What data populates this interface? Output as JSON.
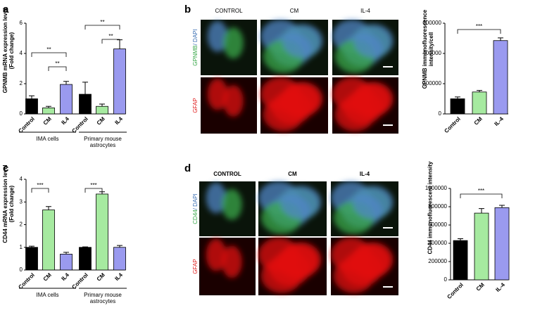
{
  "chart_data": [
    {
      "type": "bar",
      "y_label": "GPNMB mRNA expression level (Fold change)",
      "categories": [
        "Control",
        "CM",
        "IL4",
        "Control",
        "CM",
        "IL4"
      ],
      "values": [
        1.0,
        0.4,
        1.95,
        1.3,
        0.5,
        4.3
      ],
      "errors": [
        0.2,
        0.1,
        0.2,
        0.8,
        0.15,
        0.6
      ],
      "colors": [
        "#000000",
        "#a6eaa0",
        "#9a9aef",
        "#000000",
        "#a6eaa0",
        "#9a9aef"
      ],
      "groups": [
        "IMA cells",
        "Primary mouse astrocytes"
      ],
      "annotations": [
        "**",
        "**",
        "**",
        "**"
      ],
      "ylim": [
        0,
        6
      ],
      "yticks": [
        0,
        2,
        4,
        6
      ]
    },
    {
      "type": "bar",
      "y_label": "GPNMB immunofluorescence intensity/cell",
      "categories": [
        "Control",
        "CM",
        "IL-4"
      ],
      "values": [
        100000,
        145000,
        485000
      ],
      "errors": [
        12000,
        10000,
        18000
      ],
      "colors": [
        "#000000",
        "#a6eaa0",
        "#9a9aef"
      ],
      "annotations": [
        "***"
      ],
      "ylim": [
        0,
        600000
      ],
      "yticks": [
        0,
        200000,
        400000,
        600000
      ]
    },
    {
      "type": "bar",
      "y_label": "CD44 mRNA expression level (Fold change)",
      "categories": [
        "Control",
        "CM",
        "IL4",
        "Control",
        "CM",
        "IL4"
      ],
      "values": [
        1.0,
        2.65,
        0.7,
        1.0,
        3.35,
        1.0
      ],
      "errors": [
        0.05,
        0.15,
        0.08,
        0.02,
        0.1,
        0.08
      ],
      "colors": [
        "#000000",
        "#a6eaa0",
        "#9a9aef",
        "#000000",
        "#a6eaa0",
        "#9a9aef"
      ],
      "groups": [
        "IMA cells",
        "Primary mouse astrocytes"
      ],
      "annotations": [
        "***",
        "***"
      ],
      "ylim": [
        0,
        4
      ],
      "yticks": [
        0,
        1,
        2,
        3,
        4
      ]
    },
    {
      "type": "bar",
      "y_label": "CD44 immunofluorescent intensity",
      "categories": [
        "Control",
        "CM",
        "IL-4"
      ],
      "values": [
        430000,
        730000,
        790000
      ],
      "errors": [
        20000,
        50000,
        25000
      ],
      "colors": [
        "#000000",
        "#a6eaa0",
        "#9a9aef"
      ],
      "annotations": [
        "***"
      ],
      "ylim": [
        0,
        1000000
      ],
      "yticks": [
        0,
        200000,
        400000,
        600000,
        800000,
        1000000
      ]
    }
  ],
  "figure": {
    "panel_letters": [
      "a",
      "b",
      "c",
      "d"
    ],
    "b_images": {
      "columns": [
        "CONTROL",
        "CM",
        "IL-4"
      ],
      "rows": [
        [
          "GPNMB",
          "/ DAPI"
        ],
        [
          "GFAP"
        ]
      ]
    },
    "d_images": {
      "columns": [
        "CONTROL",
        "CM",
        "IL-4"
      ],
      "rows": [
        [
          "CD44",
          "/ DAPI"
        ],
        [
          "GFAP"
        ]
      ]
    }
  }
}
